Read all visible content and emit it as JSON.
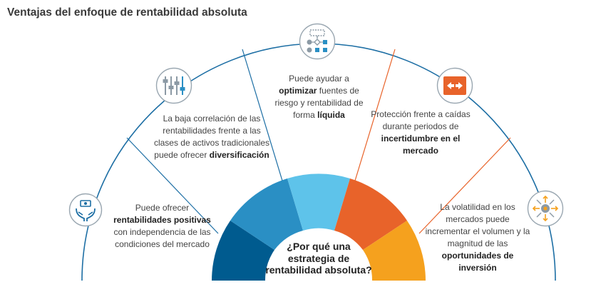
{
  "title": "Ventajas del enfoque de rentabilidad absoluta",
  "center_question": {
    "line1": "¿Por qué una",
    "line2": "estrategia de",
    "line3": "rentabilidad absoluta?"
  },
  "segments": [
    {
      "parts": [
        "Puede ofrecer ",
        "rentabilidades positivas",
        " con independencia de las condiciones del mercado"
      ],
      "color": "#005b8f",
      "icon": "hands-money-icon"
    },
    {
      "parts": [
        "La baja correlación de las rentabilidades frente a las clases de activos tradicionales puede ofrecer ",
        "diversificación",
        ""
      ],
      "color": "#2a8fc4",
      "icon": "sliders-icon"
    },
    {
      "parts": [
        "Puede ayudar a ",
        "optimizar",
        " fuentes de riesgo y rentabilidad de forma ",
        "líquida",
        ""
      ],
      "color": "#5ec3ea",
      "icon": "flowchart-icon"
    },
    {
      "parts": [
        "Protección frente a caídas durante periodos de ",
        "incertidumbre en el mercado",
        ""
      ],
      "color": "#e8632a",
      "icon": "left-right-arrows-icon"
    },
    {
      "parts": [
        "La volatilidad en los mercados puede incrementar el volumen y la magnitud de las ",
        "oportunidades de inversión",
        ""
      ],
      "color": "#f5a11e",
      "icon": "target-arrows-icon"
    }
  ],
  "colors": {
    "outer_arc": "#1c6ea4",
    "divider": "#1c6ea4",
    "divider_right": "#e8632a",
    "icon_blue": "#1c6ea4",
    "icon_orange_bg": "#e8632a"
  }
}
